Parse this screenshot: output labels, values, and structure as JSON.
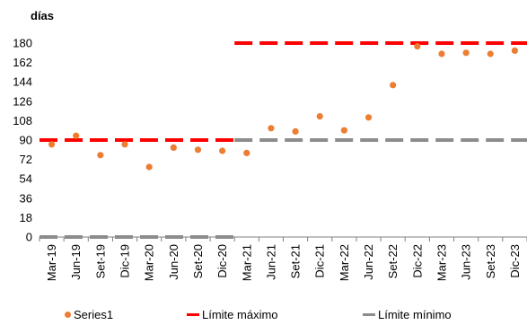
{
  "chart_data": {
    "type": "scatter",
    "y_unit_label": "días",
    "categories": [
      "Mar-19",
      "Jun-19",
      "Set-19",
      "Dic-19",
      "Mar-20",
      "Jun-20",
      "Set-20",
      "Dic-20",
      "Mar-21",
      "Jun-21",
      "Set-21",
      "Dic-21",
      "Mar-22",
      "Jun-22",
      "Set-22",
      "Dic-22",
      "Mar-23",
      "Jun-23",
      "Set-23",
      "Dic-23"
    ],
    "yticks": [
      0,
      18,
      36,
      54,
      72,
      90,
      108,
      126,
      144,
      162,
      180
    ],
    "ylim": [
      0,
      180
    ],
    "series": [
      {
        "name": "Series1",
        "kind": "points",
        "color": "#ED7D31",
        "values": [
          86,
          94,
          76,
          86,
          65,
          83,
          81,
          80,
          78,
          101,
          98,
          112,
          99,
          111,
          141,
          177,
          170,
          171,
          170,
          173
        ]
      },
      {
        "name": "Límite máximo",
        "kind": "dashed-line",
        "color": "#FF0000",
        "values": [
          90,
          90,
          90,
          90,
          90,
          90,
          90,
          90,
          180,
          180,
          180,
          180,
          180,
          180,
          180,
          180,
          180,
          180,
          180,
          180
        ]
      },
      {
        "name": "Límite mínimo",
        "kind": "dashed-line",
        "color": "#8C8C8C",
        "values": [
          0,
          0,
          0,
          0,
          0,
          0,
          0,
          0,
          90,
          90,
          90,
          90,
          90,
          90,
          90,
          90,
          90,
          90,
          90,
          90
        ]
      }
    ],
    "legend_position": "bottom",
    "grid": false
  }
}
